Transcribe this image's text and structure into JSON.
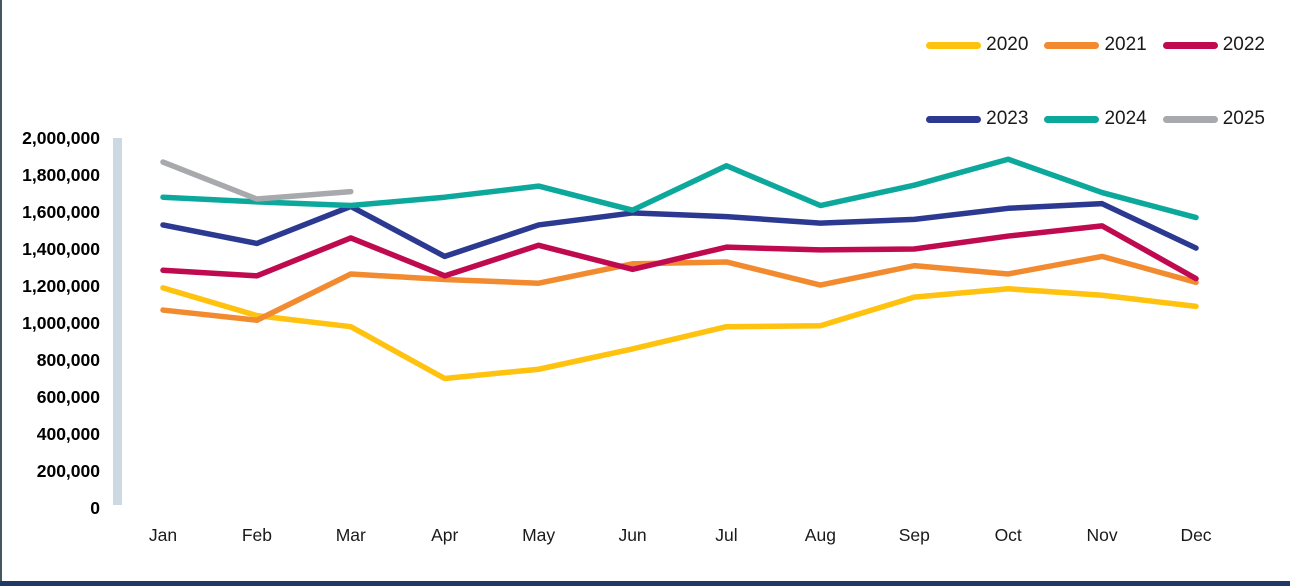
{
  "page": {
    "background": "#ffffff",
    "left_edge_color": "#47575F",
    "bottom_bar_color": "#203864",
    "axis_band_color": "#CCD9E2",
    "axis_label_color": "#000000",
    "month_label_color": "#1a1a1a"
  },
  "chart_data": {
    "type": "line",
    "title": "",
    "xlabel": "",
    "ylabel": "",
    "x": [
      "Jan",
      "Feb",
      "Mar",
      "Apr",
      "May",
      "Jun",
      "Jul",
      "Aug",
      "Sep",
      "Oct",
      "Nov",
      "Dec"
    ],
    "ylim": [
      0,
      2000000
    ],
    "ytick_step": 200000,
    "ytick_labels": [
      "0",
      "200,000",
      "400,000",
      "600,000",
      "800,000",
      "1,000,000",
      "1,200,000",
      "1,400,000",
      "1,600,000",
      "1,800,000",
      "2,000,000"
    ],
    "grid": false,
    "legend_position": "top-right",
    "series": [
      {
        "name": "2020",
        "color": "#FFC20E",
        "values": [
          1190000,
          1040000,
          980000,
          700000,
          750000,
          860000,
          980000,
          985000,
          1140000,
          1185000,
          1150000,
          1090000
        ]
      },
      {
        "name": "2021",
        "color": "#F28B30",
        "values": [
          1070000,
          1015000,
          1265000,
          1235000,
          1215000,
          1320000,
          1330000,
          1205000,
          1310000,
          1265000,
          1360000,
          1220000
        ]
      },
      {
        "name": "2022",
        "color": "#C00A50",
        "values": [
          1285000,
          1255000,
          1460000,
          1255000,
          1420000,
          1290000,
          1410000,
          1395000,
          1400000,
          1470000,
          1525000,
          1240000
        ]
      },
      {
        "name": "2023",
        "color": "#2B3990",
        "values": [
          1530000,
          1430000,
          1630000,
          1360000,
          1530000,
          1595000,
          1575000,
          1540000,
          1560000,
          1620000,
          1645000,
          1405000
        ]
      },
      {
        "name": "2024",
        "color": "#0DA89C",
        "values": [
          1680000,
          1655000,
          1635000,
          1680000,
          1740000,
          1610000,
          1850000,
          1635000,
          1745000,
          1885000,
          1705000,
          1570000
        ]
      },
      {
        "name": "2025",
        "color": "#A7A9AC",
        "values": [
          1870000,
          1670000,
          1710000,
          null,
          null,
          null,
          null,
          null,
          null,
          null,
          null,
          null
        ]
      }
    ]
  }
}
